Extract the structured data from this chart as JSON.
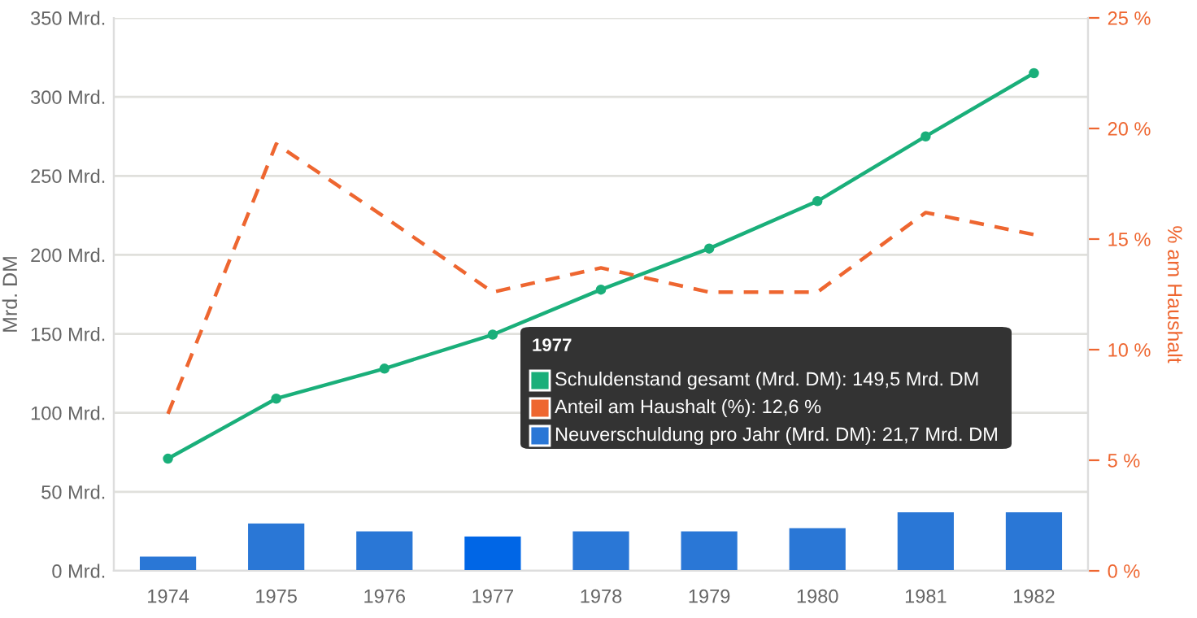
{
  "chart_data": {
    "type": "line",
    "categories": [
      "1974",
      "1975",
      "1976",
      "1977",
      "1978",
      "1979",
      "1980",
      "1981",
      "1982"
    ],
    "ylabel": "Mrd. DM",
    "y2label": "% am Haushalt",
    "series": [
      {
        "type": "bar",
        "color": "#2a77d6",
        "colors": [
          "#2a77d6",
          "#2a77d6",
          "#2a77d6",
          "#0066e6",
          "#2a77d6",
          "#2a77d6",
          "#2a77d6",
          "#2a77d6",
          "#2a77d6"
        ],
        "values": [
          9,
          30,
          25,
          21.7,
          25,
          25,
          27,
          37,
          37
        ]
      },
      {
        "color": "#1aaf7a",
        "marker": "circle",
        "line_style": "solid",
        "values": [
          71,
          109,
          128,
          149.5,
          178,
          204,
          234,
          275,
          315
        ]
      },
      {
        "axis": "y2",
        "color": "#ee6630",
        "marker": "none",
        "line_style": "dashed",
        "values": [
          7.1,
          19.3,
          16.0,
          12.6,
          13.7,
          12.6,
          12.6,
          16.2,
          15.2
        ]
      }
    ],
    "ylim": [
      0,
      350
    ],
    "yticks": [
      {
        "value": 0,
        "label": "0 Mrd."
      },
      {
        "value": 50,
        "label": "50 Mrd."
      },
      {
        "value": 100,
        "label": "100 Mrd."
      },
      {
        "value": 150,
        "label": "150 Mrd."
      },
      {
        "value": 200,
        "label": "200 Mrd."
      },
      {
        "value": 250,
        "label": "250 Mrd."
      },
      {
        "value": 300,
        "label": "300 Mrd."
      },
      {
        "value": 350,
        "label": "350 Mrd."
      }
    ],
    "y2lim": [
      0,
      25
    ],
    "y2ticks": [
      {
        "value": 0,
        "label": "0 %"
      },
      {
        "value": 5,
        "label": "5 %"
      },
      {
        "value": 10,
        "label": "10 %"
      },
      {
        "value": 15,
        "label": "15 %"
      },
      {
        "value": 20,
        "label": "20 %"
      },
      {
        "value": 25,
        "label": "25 %"
      }
    ],
    "grid": "y",
    "legend": false,
    "annotations": [
      "1977",
      "Schuldenstand gesamt (Mrd. DM): 149,5 Mrd. DM",
      "Anteil am Haushalt (%): 12,6 %",
      "Neuverschuldung pro Jahr (Mrd. DM): 21,7 Mrd. DM"
    ]
  }
}
